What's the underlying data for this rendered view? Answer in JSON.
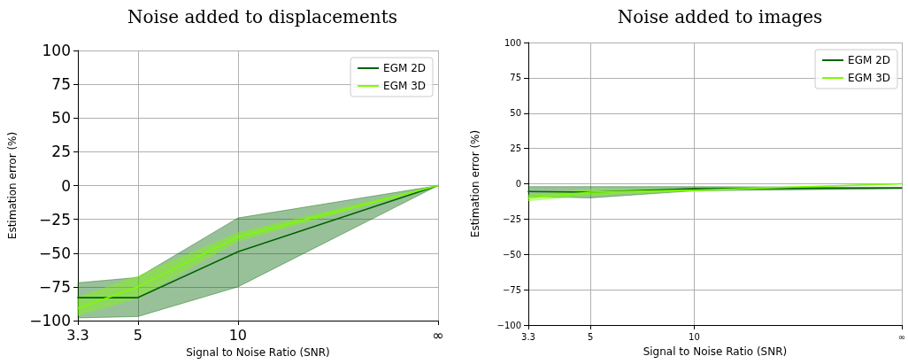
{
  "chart_data": [
    {
      "type": "line",
      "title": "Noise added to displacements",
      "xlabel": "Signal to Noise Ratio (SNR)",
      "ylabel": "Estimation error (%)",
      "x": [
        3.3,
        5,
        10,
        40
      ],
      "log": "x",
      "xlim": [
        3.3,
        40
      ],
      "xticks": [
        3.3,
        5,
        10,
        {
          "value": 40,
          "label": "∞"
        }
      ],
      "ylim": [
        -100,
        100
      ],
      "yticks": [
        -100,
        -75,
        -50,
        -25,
        0,
        25,
        50,
        75,
        100
      ],
      "grid": true,
      "legend": "top right",
      "marker": "none",
      "line_style": "solid",
      "series": [
        {
          "name": "EGM 2D",
          "color": "#006400",
          "values": [
            -83,
            -83,
            -49,
            0
          ],
          "lower": [
            -98,
            -97,
            -75,
            0
          ],
          "upper": [
            -72,
            -68,
            -24,
            0
          ]
        },
        {
          "name": "EGM 3D",
          "color": "#7cfc00",
          "values": [
            -91,
            -75,
            -38,
            0
          ],
          "lower": [
            -96,
            -83,
            -41,
            0
          ],
          "upper": [
            -83,
            -67,
            -35,
            0
          ]
        }
      ]
    },
    {
      "type": "line",
      "title": "Noise added to images",
      "xlabel": "Signal to Noise Ratio (SNR)",
      "ylabel": "Estimation error (%)",
      "x": [
        3.3,
        5,
        10,
        40
      ],
      "log": "x",
      "xlim": [
        3.3,
        40
      ],
      "xticks": [
        3.3,
        5,
        10,
        {
          "value": 40,
          "label": "∞"
        }
      ],
      "ylim": [
        -100,
        100
      ],
      "yticks": [
        -100,
        -75,
        -50,
        -25,
        0,
        25,
        50,
        75,
        100
      ],
      "grid": true,
      "legend": "top right",
      "marker": "none",
      "line_style": "solid",
      "series": [
        {
          "name": "EGM 2D",
          "color": "#006400",
          "values": [
            -5.5,
            -6,
            -3.5,
            -3
          ],
          "lower": [
            -9,
            -10,
            -5,
            -3.5
          ],
          "upper": [
            -2,
            -2,
            -2,
            -2.5
          ]
        },
        {
          "name": "EGM 3D",
          "color": "#7cfc00",
          "values": [
            -10,
            -6,
            -4.5,
            0
          ],
          "lower": [
            -12,
            -8,
            -5,
            0
          ],
          "upper": [
            -8,
            -4,
            -4,
            0
          ]
        }
      ]
    }
  ]
}
